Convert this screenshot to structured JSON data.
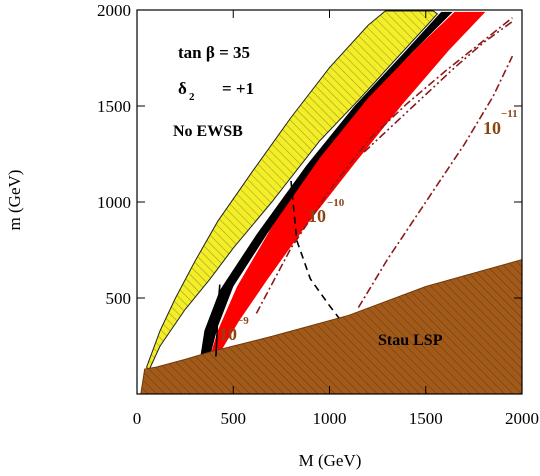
{
  "chart_data": {
    "type": "area",
    "xlabel": "M (GeV)",
    "ylabel": "m (GeV)",
    "xlim": [
      0,
      2000
    ],
    "ylim": [
      0,
      2000
    ],
    "xticks": [
      0,
      500,
      1000,
      1500,
      2000
    ],
    "yticks": [
      500,
      1000,
      1500,
      2000
    ],
    "xtick_labels": [
      "0",
      "500",
      "1000",
      "1500",
      "2000"
    ],
    "ytick_labels": [
      "500",
      "1000",
      "1500",
      "2000"
    ],
    "grid": false,
    "annotations": {
      "tan_beta": "tan β = 35",
      "delta_label": "δ",
      "delta_sub": "2",
      "delta_value": "= +1",
      "no_ewsb": "No EWSB",
      "stau_lsp": "Stau LSP",
      "contour_9": {
        "base": "10",
        "exp": "−9"
      },
      "contour_10": {
        "base": "10",
        "exp": "−10"
      },
      "contour_11": {
        "base": "10",
        "exp": "−11"
      }
    },
    "regions": {
      "no_ewsb": {
        "label": "No EWSB",
        "fill": "#f2ee2a",
        "boundary": [
          [
            50,
            140
          ],
          [
            120,
            330
          ],
          [
            200,
            500
          ],
          [
            300,
            690
          ],
          [
            420,
            900
          ],
          [
            600,
            1160
          ],
          [
            800,
            1440
          ],
          [
            1000,
            1700
          ],
          [
            1200,
            1920
          ],
          [
            1290,
            1995
          ],
          [
            1540,
            1995
          ],
          [
            1560,
            1980
          ],
          [
            1520,
            1935
          ],
          [
            1350,
            1750
          ],
          [
            1150,
            1530
          ],
          [
            950,
            1320
          ],
          [
            700,
            1000
          ],
          [
            500,
            760
          ],
          [
            380,
            600
          ],
          [
            250,
            440
          ],
          [
            120,
            250
          ],
          [
            60,
            120
          ]
        ]
      },
      "stau_lsp": {
        "label": "Stau LSP",
        "fill": "#a25a1b",
        "boundary": [
          [
            20,
            0
          ],
          [
            2000,
            0
          ],
          [
            2000,
            700
          ],
          [
            1500,
            560
          ],
          [
            1100,
            410
          ],
          [
            700,
            300
          ],
          [
            400,
            225
          ],
          [
            250,
            180
          ],
          [
            100,
            140
          ],
          [
            40,
            130
          ]
        ]
      },
      "red_band": {
        "fill": "#ff0000",
        "boundary": [
          [
            380,
            200
          ],
          [
            420,
            330
          ],
          [
            520,
            560
          ],
          [
            700,
            870
          ],
          [
            950,
            1230
          ],
          [
            1200,
            1540
          ],
          [
            1450,
            1800
          ],
          [
            1650,
            1990
          ],
          [
            1810,
            1990
          ],
          [
            1620,
            1790
          ],
          [
            1380,
            1510
          ],
          [
            1130,
            1200
          ],
          [
            880,
            880
          ],
          [
            680,
            600
          ],
          [
            530,
            380
          ],
          [
            440,
            230
          ]
        ]
      },
      "black_band": {
        "fill": "#000000",
        "boundary": [
          [
            330,
            200
          ],
          [
            350,
            330
          ],
          [
            430,
            540
          ],
          [
            620,
            830
          ],
          [
            880,
            1190
          ],
          [
            1130,
            1500
          ],
          [
            1380,
            1770
          ],
          [
            1580,
            1990
          ],
          [
            1640,
            1990
          ],
          [
            1430,
            1780
          ],
          [
            1180,
            1510
          ],
          [
            930,
            1190
          ],
          [
            680,
            840
          ],
          [
            500,
            560
          ],
          [
            420,
            350
          ],
          [
            380,
            200
          ]
        ]
      }
    },
    "series": [
      {
        "name": "10^-9",
        "style": "solid",
        "color": "#000000",
        "points": [
          [
            410,
            195
          ],
          [
            415,
            300
          ],
          [
            420,
            440
          ],
          [
            430,
            570
          ]
        ]
      },
      {
        "name": "10^-10",
        "style": "dashed",
        "color": "#000000",
        "points": [
          [
            800,
            1110
          ],
          [
            830,
            800
          ],
          [
            900,
            600
          ],
          [
            1000,
            460
          ],
          [
            1050,
            395
          ]
        ]
      },
      {
        "name": "10^-11 a",
        "style": "dashdot",
        "color": "#8b1a1a",
        "points": [
          [
            620,
            420
          ],
          [
            800,
            760
          ],
          [
            1000,
            1060
          ],
          [
            1200,
            1320
          ],
          [
            1400,
            1510
          ],
          [
            1600,
            1680
          ],
          [
            1800,
            1840
          ],
          [
            1950,
            1960
          ]
        ]
      },
      {
        "name": "10^-11 b",
        "style": "dashdot",
        "color": "#8b1a1a",
        "points": [
          [
            1150,
            450
          ],
          [
            1300,
            700
          ],
          [
            1500,
            1000
          ],
          [
            1700,
            1300
          ],
          [
            1850,
            1550
          ],
          [
            1950,
            1760
          ]
        ]
      },
      {
        "name": "10^-11 c",
        "style": "dashdotdot",
        "color": "#8b1a1a",
        "points": [
          [
            1180,
            1260
          ],
          [
            1350,
            1420
          ],
          [
            1500,
            1560
          ],
          [
            1650,
            1700
          ],
          [
            1800,
            1830
          ],
          [
            1950,
            1940
          ]
        ]
      }
    ]
  }
}
